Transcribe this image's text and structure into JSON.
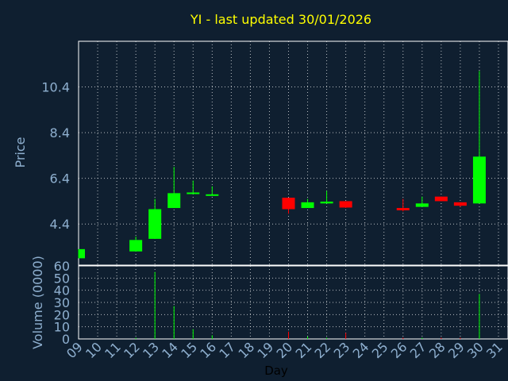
{
  "chart_data": {
    "type": "candlestick",
    "title": "YI - last updated 30/01/2026",
    "xlabel": "Day",
    "ylabel": "Price",
    "volume_label": "Volume (0000)",
    "x_ticks": [
      "09",
      "10",
      "11",
      "12",
      "13",
      "14",
      "15",
      "16",
      "17",
      "18",
      "19",
      "20",
      "21",
      "22",
      "23",
      "24",
      "25",
      "26",
      "27",
      "28",
      "29",
      "30",
      "31"
    ],
    "price_ticks": [
      "4.4",
      "6.4",
      "8.4",
      "10.4"
    ],
    "volume_ticks": [
      "0",
      "10",
      "20",
      "30",
      "40",
      "50",
      "60"
    ],
    "price_range": [
      2.6,
      12.4
    ],
    "volume_range": [
      0,
      60
    ],
    "grid": true,
    "colors": {
      "up": "#00ff00",
      "down": "#ff0000",
      "title": "#ffff00",
      "axis_text": "#8fb0d0",
      "background": "#0f1f30"
    },
    "candles": [
      {
        "day": 9,
        "open": 2.9,
        "high": 3.3,
        "low": 2.9,
        "close": 3.3,
        "volume": 0
      },
      {
        "day": 12,
        "open": 3.2,
        "high": 3.85,
        "low": 3.2,
        "close": 3.7,
        "volume": 1
      },
      {
        "day": 13,
        "open": 3.75,
        "high": 5.5,
        "low": 3.75,
        "close": 5.05,
        "volume": 55
      },
      {
        "day": 14,
        "open": 5.1,
        "high": 6.9,
        "low": 5.1,
        "close": 5.75,
        "volume": 27
      },
      {
        "day": 15,
        "open": 5.72,
        "high": 6.3,
        "low": 5.72,
        "close": 5.78,
        "volume": 8
      },
      {
        "day": 16,
        "open": 5.65,
        "high": 6.05,
        "low": 5.65,
        "close": 5.7,
        "volume": 3
      },
      {
        "day": 20,
        "open": 5.55,
        "high": 5.55,
        "low": 4.85,
        "close": 5.05,
        "volume": 6
      },
      {
        "day": 21,
        "open": 5.1,
        "high": 5.5,
        "low": 5.1,
        "close": 5.35,
        "volume": 2
      },
      {
        "day": 22,
        "open": 5.3,
        "high": 5.85,
        "low": 5.3,
        "close": 5.38,
        "volume": 1
      },
      {
        "day": 23,
        "open": 5.4,
        "high": 5.4,
        "low": 5.1,
        "close": 5.12,
        "volume": 5
      },
      {
        "day": 26,
        "open": 5.1,
        "high": 5.5,
        "low": 4.95,
        "close": 5.0,
        "volume": 1
      },
      {
        "day": 27,
        "open": 5.15,
        "high": 5.6,
        "low": 5.15,
        "close": 5.3,
        "volume": 1
      },
      {
        "day": 28,
        "open": 5.6,
        "high": 5.6,
        "low": 5.4,
        "close": 5.4,
        "volume": 1
      },
      {
        "day": 29,
        "open": 5.35,
        "high": 5.35,
        "low": 5.15,
        "close": 5.2,
        "volume": 1
      },
      {
        "day": 30,
        "open": 5.3,
        "high": 11.1,
        "low": 5.3,
        "close": 7.35,
        "volume": 37
      }
    ]
  }
}
